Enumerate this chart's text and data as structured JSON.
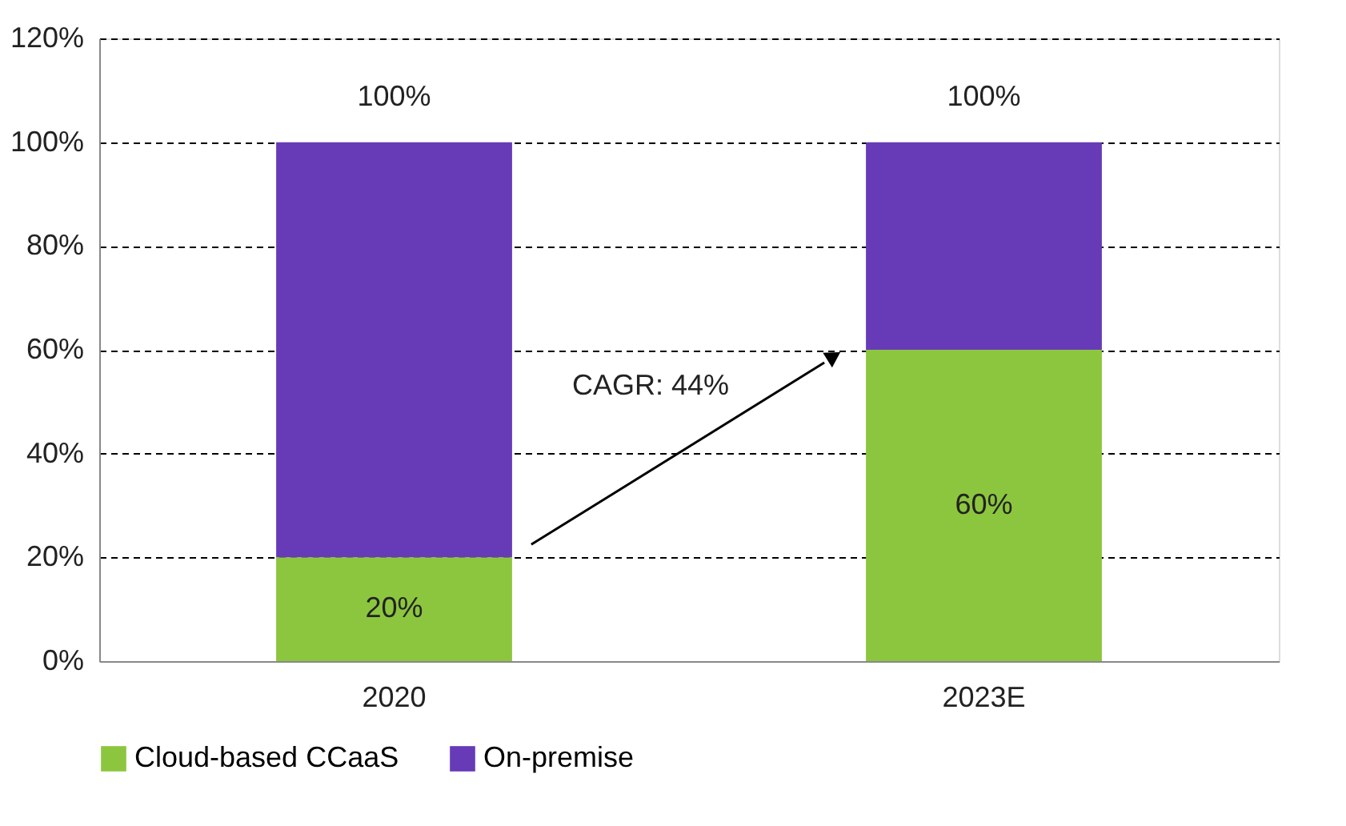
{
  "chart_data": {
    "type": "bar",
    "stacked": true,
    "categories": [
      "2020",
      "2023E"
    ],
    "series": [
      {
        "name": "Cloud-based CCaaS",
        "color": "#8cc63e",
        "values": [
          20,
          60
        ],
        "value_labels": [
          "20%",
          "60%"
        ]
      },
      {
        "name": "On-premise",
        "color": "#673ab7",
        "values": [
          80,
          40
        ],
        "value_labels": [
          null,
          null
        ]
      }
    ],
    "totals": [
      "100%",
      "100%"
    ],
    "ylim": [
      0,
      120
    ],
    "yticks": [
      {
        "value": 0,
        "label": "0%"
      },
      {
        "value": 20,
        "label": "20%"
      },
      {
        "value": 40,
        "label": "40%"
      },
      {
        "value": 60,
        "label": "60%"
      },
      {
        "value": 80,
        "label": "80%"
      },
      {
        "value": 100,
        "label": "100%"
      },
      {
        "value": 120,
        "label": "120%"
      }
    ],
    "grid": "y",
    "legend": "bottom",
    "annotations": [
      "CAGR: 44%"
    ]
  }
}
